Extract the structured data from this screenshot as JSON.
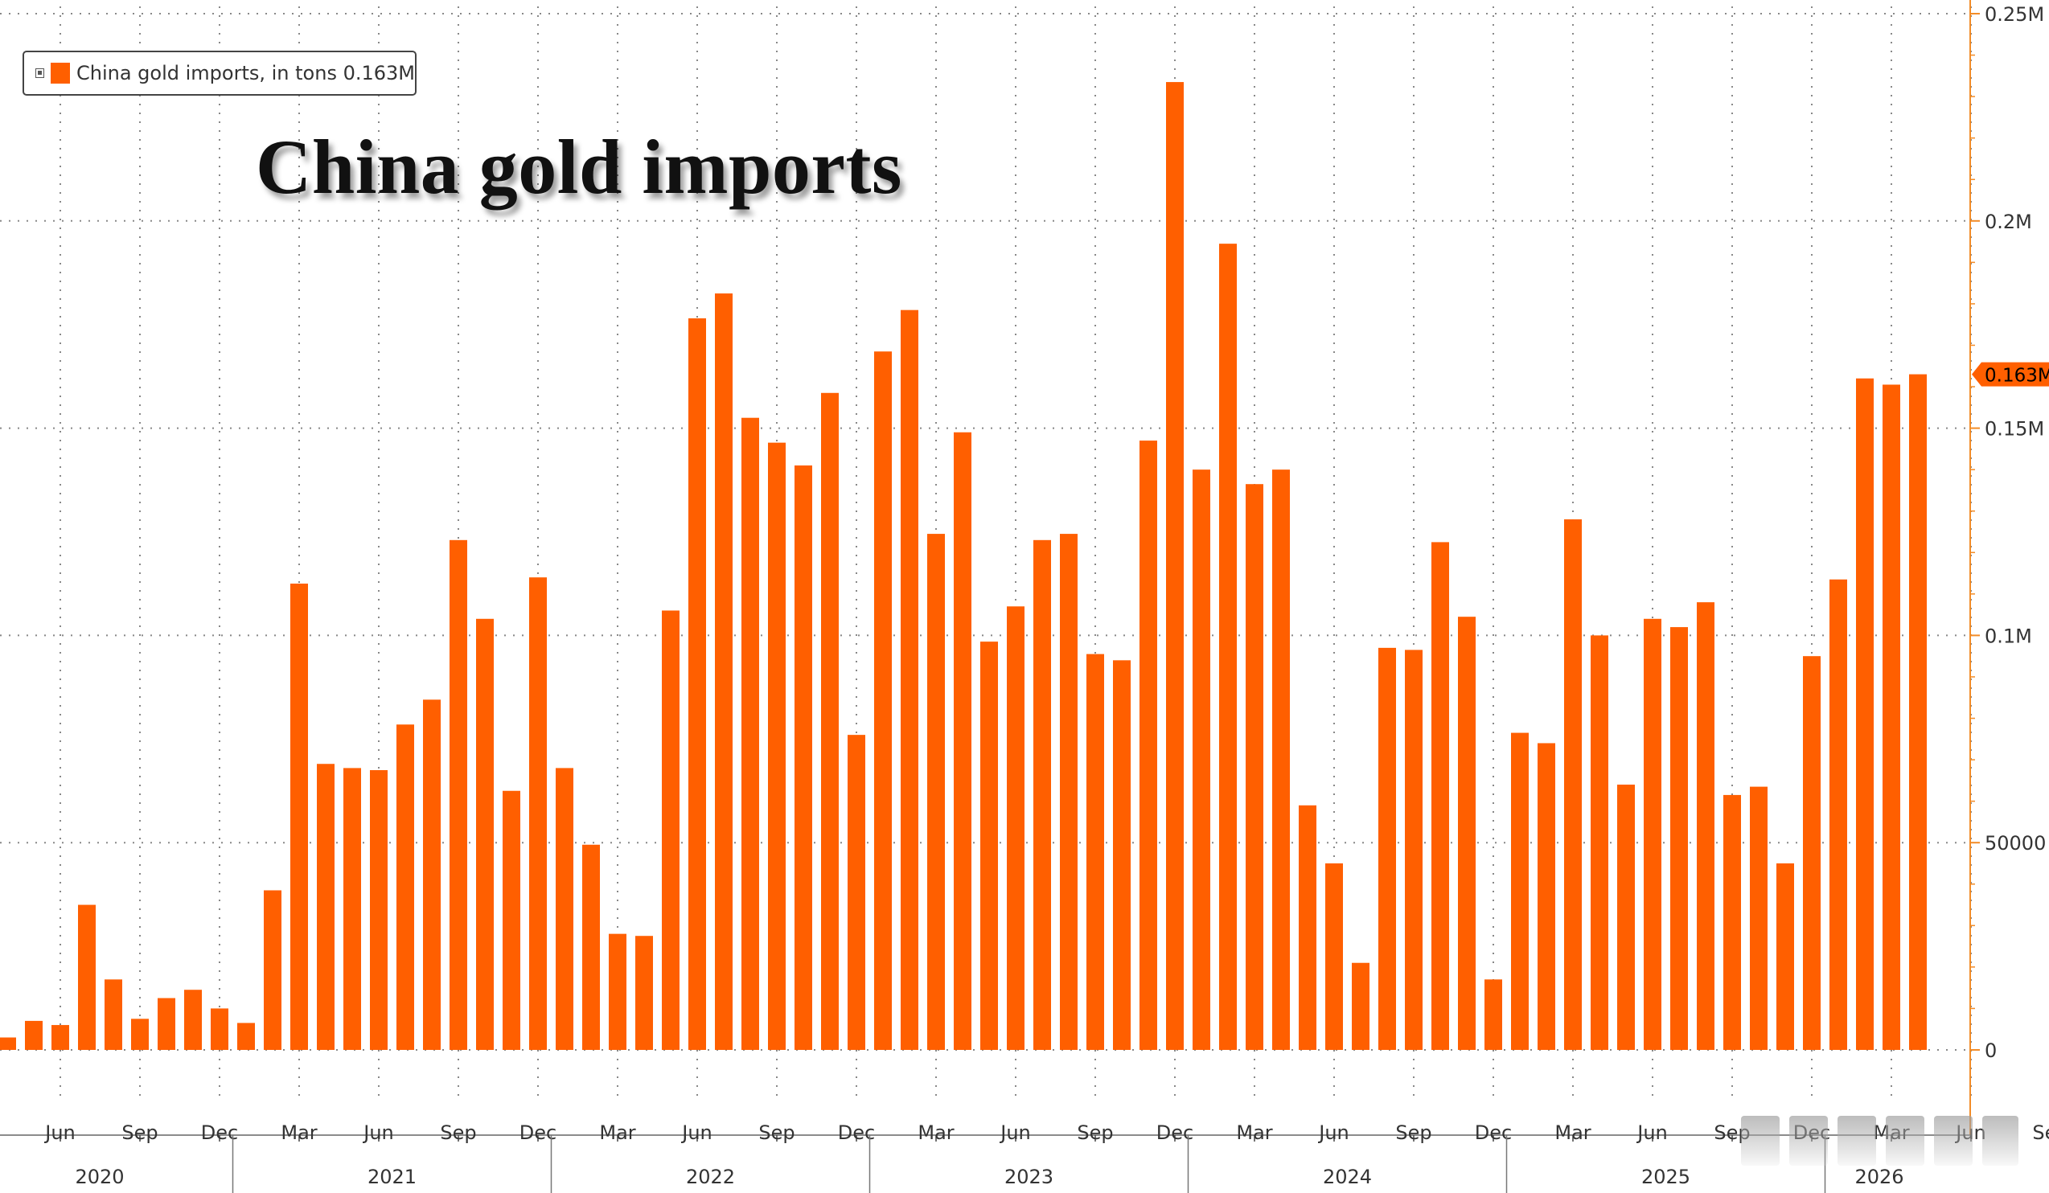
{
  "chart_data": {
    "type": "bar",
    "title": "China gold imports",
    "legend": {
      "label": "China gold imports, in tons 0.163M",
      "placement": "top-left"
    },
    "series": [
      {
        "name": "China gold imports, in tons",
        "color": "#ff5f00",
        "values": [
          3000,
          7000,
          6000,
          35000,
          17000,
          7500,
          12500,
          14500,
          10000,
          6500,
          38500,
          112500,
          69000,
          68000,
          67500,
          78500,
          84500,
          123000,
          104000,
          62500,
          114000,
          68000,
          49500,
          28000,
          27500,
          106000,
          176500,
          182500,
          152500,
          146500,
          141000,
          158500,
          76000,
          168500,
          178500,
          124500,
          149000,
          98500,
          107000,
          123000,
          124500,
          95500,
          94000,
          147000,
          233500,
          140000,
          194500,
          136500,
          140000,
          59000,
          45000,
          21000,
          97000,
          96500,
          122500,
          104500,
          17000,
          76500,
          74000,
          128000,
          100000,
          64000,
          104000,
          102000,
          108000,
          61500,
          63500,
          45000,
          95000,
          113500,
          162000,
          160500,
          163000
        ]
      }
    ],
    "x": {
      "start_month": "2020-04",
      "end_month": "2026-04",
      "month_ticks": [
        "Jun",
        "Sep",
        "Dec",
        "Mar",
        "Jun",
        "Sep",
        "Dec",
        "Mar",
        "Jun",
        "Sep",
        "Dec",
        "Mar",
        "Jun",
        "Sep",
        "Dec",
        "Mar",
        "Jun",
        "Sep",
        "Dec",
        "Mar",
        "Jun",
        "Sep",
        "Dec",
        "Mar",
        "Jun",
        "Sep"
      ],
      "year_labels": [
        "2020",
        "2021",
        "2022",
        "2023",
        "2024",
        "2025",
        "2026"
      ]
    },
    "y": {
      "ylim": [
        -25000,
        250000
      ],
      "tick_values": [
        0,
        50000,
        100000,
        150000,
        200000,
        250000
      ],
      "tick_labels": [
        "0",
        "50000",
        "0.1M",
        "0.15M",
        "0.2M",
        "0.25M"
      ],
      "position": "right"
    },
    "last_value_label": "0.163M",
    "grid": true,
    "colors": {
      "bar": "#ff5f00",
      "axis": "#f28c28",
      "grid": "#888888"
    }
  }
}
